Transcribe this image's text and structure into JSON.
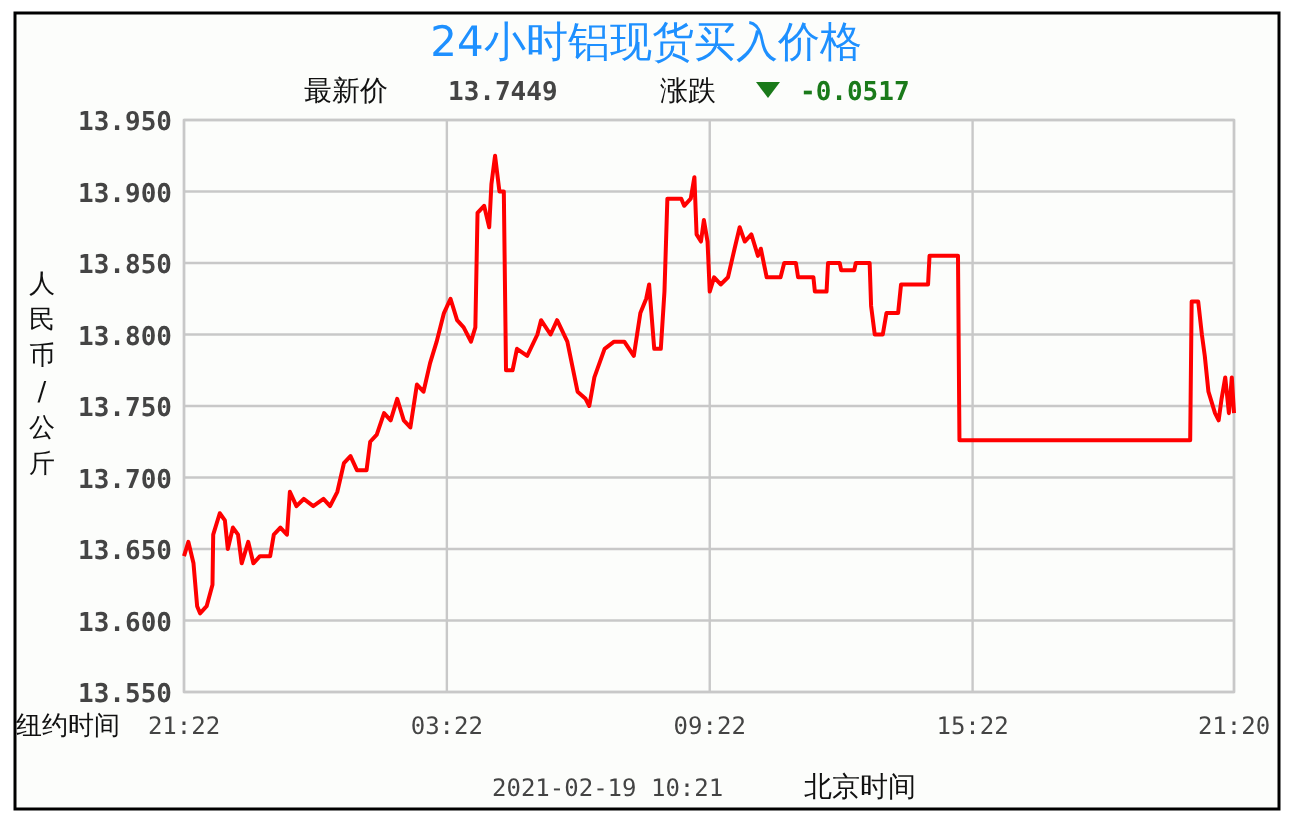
{
  "chart_data": {
    "type": "line",
    "title": "24小时铝现货买入价格",
    "ylabel": "人民币/公斤",
    "xlabel": "纽约时间",
    "annotations": [
      "最新价",
      "13.7449",
      "涨跌",
      "-0.0517",
      "2021-02-19 10:21",
      "北京时间"
    ],
    "xlim": [
      "2021-02-17T21:22",
      "2021-02-18T21:20"
    ],
    "xticks": [
      {
        "value": "2021-02-17T21:22",
        "label": "21:22"
      },
      {
        "value": "2021-02-18T03:22",
        "label": "03:22"
      },
      {
        "value": "2021-02-18T09:22",
        "label": "09:22"
      },
      {
        "value": "2021-02-18T15:22",
        "label": "15:22"
      },
      {
        "value": "2021-02-18T21:20",
        "label": "21:20"
      }
    ],
    "ylim": [
      13.55,
      13.95
    ],
    "yticks": [
      {
        "value": 13.55,
        "label": "13.550"
      },
      {
        "value": 13.6,
        "label": "13.600"
      },
      {
        "value": 13.65,
        "label": "13.650"
      },
      {
        "value": 13.7,
        "label": "13.700"
      },
      {
        "value": 13.75,
        "label": "13.750"
      },
      {
        "value": 13.8,
        "label": "13.800"
      },
      {
        "value": 13.85,
        "label": "13.850"
      },
      {
        "value": 13.9,
        "label": "13.900"
      },
      {
        "value": 13.95,
        "label": "13.950"
      }
    ],
    "grid": true,
    "series": [
      {
        "color": "#ff0000",
        "x": [
          "2021-02-17T21:22",
          "2021-02-17T21:28",
          "2021-02-17T21:35",
          "2021-02-17T21:40",
          "2021-02-17T21:44",
          "2021-02-17T21:53",
          "2021-02-17T22:01",
          "2021-02-17T22:02",
          "2021-02-17T22:11",
          "2021-02-17T22:18",
          "2021-02-17T22:22",
          "2021-02-17T22:29",
          "2021-02-17T22:36",
          "2021-02-17T22:41",
          "2021-02-17T22:50",
          "2021-02-17T22:57",
          "2021-02-17T23:06",
          "2021-02-17T23:20",
          "2021-02-17T23:25",
          "2021-02-17T23:34",
          "2021-02-17T23:43",
          "2021-02-17T23:47",
          "2021-02-17T23:56",
          "2021-02-18T00:06",
          "2021-02-18T00:19",
          "2021-02-18T00:33",
          "2021-02-18T00:42",
          "2021-02-18T00:52",
          "2021-02-18T01:01",
          "2021-02-18T01:10",
          "2021-02-18T01:19",
          "2021-02-18T01:32",
          "2021-02-18T01:37",
          "2021-02-18T01:46",
          "2021-02-18T01:56",
          "2021-02-18T02:05",
          "2021-02-18T02:14",
          "2021-02-18T02:23",
          "2021-02-18T02:32",
          "2021-02-18T02:41",
          "2021-02-18T02:50",
          "2021-02-18T02:59",
          "2021-02-18T03:08",
          "2021-02-18T03:18",
          "2021-02-18T03:27",
          "2021-02-18T03:36",
          "2021-02-18T03:45",
          "2021-02-18T03:55",
          "2021-02-18T04:01",
          "2021-02-18T04:04",
          "2021-02-18T04:13",
          "2021-02-18T04:20",
          "2021-02-18T04:23",
          "2021-02-18T04:28",
          "2021-02-18T04:34",
          "2021-02-18T04:40",
          "2021-02-18T04:43",
          "2021-02-18T04:52",
          "2021-02-18T04:58",
          "2021-02-18T05:12",
          "2021-02-18T05:26",
          "2021-02-18T05:31",
          "2021-02-18T05:44",
          "2021-02-18T05:53",
          "2021-02-18T06:07",
          "2021-02-18T06:21",
          "2021-02-18T06:32",
          "2021-02-18T06:37",
          "2021-02-18T06:44",
          "2021-02-18T06:58",
          "2021-02-18T07:11",
          "2021-02-18T07:25",
          "2021-02-18T07:38",
          "2021-02-18T07:47",
          "2021-02-18T07:55",
          "2021-02-18T07:59",
          "2021-02-18T08:06",
          "2021-02-18T08:15",
          "2021-02-18T08:20",
          "2021-02-18T08:24",
          "2021-02-18T08:43",
          "2021-02-18T08:47",
          "2021-02-18T08:56",
          "2021-02-18T09:01",
          "2021-02-18T09:04",
          "2021-02-18T09:10",
          "2021-02-18T09:14",
          "2021-02-18T09:19",
          "2021-02-18T09:22",
          "2021-02-18T09:28",
          "2021-02-18T09:37",
          "2021-02-18T09:47",
          "2021-02-18T09:56",
          "2021-02-18T10:03",
          "2021-02-18T10:10",
          "2021-02-18T10:19",
          "2021-02-18T10:28",
          "2021-02-18T10:32",
          "2021-02-18T10:40",
          "2021-02-18T10:59",
          "2021-02-18T11:04",
          "2021-02-18T11:20",
          "2021-02-18T11:23",
          "2021-02-18T11:44",
          "2021-02-18T11:46",
          "2021-02-18T12:02",
          "2021-02-18T12:04",
          "2021-02-18T12:20",
          "2021-02-18T12:22",
          "2021-02-18T12:40",
          "2021-02-18T12:42",
          "2021-02-18T13:01",
          "2021-02-18T13:03",
          "2021-02-18T13:08",
          "2021-02-18T13:19",
          "2021-02-18T13:24",
          "2021-02-18T13:40",
          "2021-02-18T13:44",
          "2021-02-18T14:21",
          "2021-02-18T14:23",
          "2021-02-18T15:02",
          "2021-02-18T15:04",
          "2021-02-18T20:20",
          "2021-02-18T20:22",
          "2021-02-18T20:31",
          "2021-02-18T20:36",
          "2021-02-18T20:40",
          "2021-02-18T20:45",
          "2021-02-18T20:54",
          "2021-02-18T20:59",
          "2021-02-18T21:03",
          "2021-02-18T21:08",
          "2021-02-18T21:13",
          "2021-02-18T21:17",
          "2021-02-18T21:20"
        ],
        "values": [
          13.645,
          13.655,
          13.64,
          13.61,
          13.605,
          13.61,
          13.625,
          13.66,
          13.675,
          13.67,
          13.65,
          13.665,
          13.66,
          13.64,
          13.655,
          13.64,
          13.645,
          13.645,
          13.66,
          13.665,
          13.66,
          13.69,
          13.68,
          13.685,
          13.68,
          13.685,
          13.68,
          13.69,
          13.71,
          13.715,
          13.705,
          13.705,
          13.725,
          13.73,
          13.745,
          13.74,
          13.755,
          13.74,
          13.735,
          13.765,
          13.76,
          13.78,
          13.795,
          13.815,
          13.825,
          13.81,
          13.805,
          13.795,
          13.805,
          13.885,
          13.89,
          13.875,
          13.905,
          13.925,
          13.9,
          13.9,
          13.775,
          13.775,
          13.79,
          13.785,
          13.8,
          13.81,
          13.8,
          13.81,
          13.795,
          13.76,
          13.755,
          13.75,
          13.77,
          13.79,
          13.795,
          13.795,
          13.785,
          13.815,
          13.825,
          13.835,
          13.79,
          13.79,
          13.83,
          13.895,
          13.895,
          13.89,
          13.895,
          13.91,
          13.87,
          13.865,
          13.88,
          13.865,
          13.83,
          13.84,
          13.835,
          13.84,
          13.86,
          13.875,
          13.865,
          13.87,
          13.855,
          13.86,
          13.84,
          13.84,
          13.85,
          13.85,
          13.84,
          13.84,
          13.83,
          13.83,
          13.85,
          13.85,
          13.845,
          13.845,
          13.85,
          13.85,
          13.82,
          13.8,
          13.8,
          13.815,
          13.815,
          13.835,
          13.835,
          13.855,
          13.855,
          13.726,
          13.726,
          13.823,
          13.823,
          13.8,
          13.785,
          13.76,
          13.745,
          13.74,
          13.755,
          13.77,
          13.745,
          13.77,
          13.745
        ]
      }
    ]
  }
}
